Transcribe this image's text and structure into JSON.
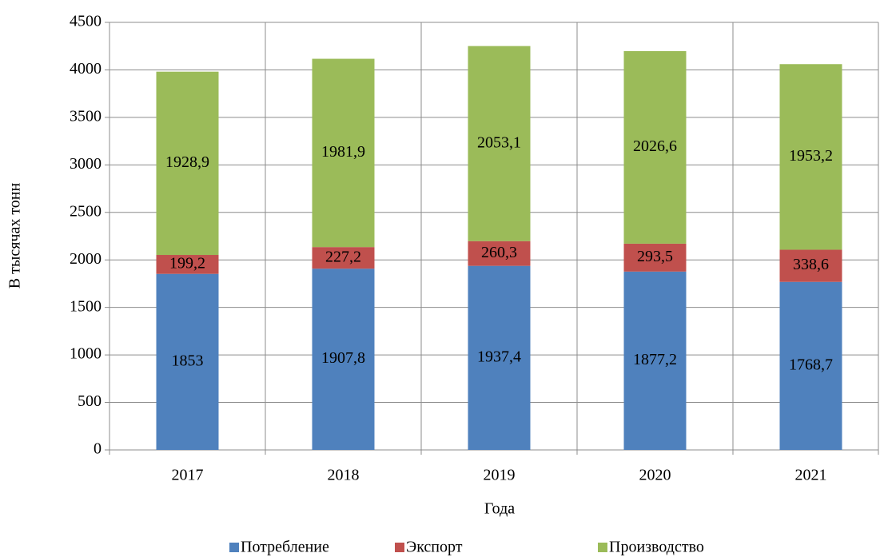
{
  "chart_data": {
    "type": "stacked_bar",
    "x_label": "Года",
    "y_label": "В тысячах тонн",
    "categories": [
      "2017",
      "2018",
      "2019",
      "2020",
      "2021"
    ],
    "series": [
      {
        "name": "Потребление",
        "color": "#4f81bd",
        "values": [
          1853,
          1907.8,
          1937.4,
          1877.2,
          1768.7
        ],
        "value_labels": [
          "1853",
          "1907,8",
          "1937,4",
          "1877,2",
          "1768,7"
        ]
      },
      {
        "name": "Экспорт",
        "color": "#c0504d",
        "values": [
          199.2,
          227.2,
          260.3,
          293.5,
          338.6
        ],
        "value_labels": [
          "199,2",
          "227,2",
          "260,3",
          "293,5",
          "338,6"
        ]
      },
      {
        "name": "Производство",
        "color": "#9bbb59",
        "values": [
          1928.9,
          1981.9,
          2053.1,
          2026.6,
          1953.2
        ],
        "value_labels": [
          "1928,9",
          "1981,9",
          "2053,1",
          "2026,6",
          "1953,2"
        ]
      }
    ],
    "ylim": [
      0,
      4500
    ],
    "yticks": [
      0,
      500,
      1000,
      1500,
      2000,
      2500,
      3000,
      3500,
      4000,
      4500
    ],
    "grid": true,
    "legend": "bottom"
  }
}
